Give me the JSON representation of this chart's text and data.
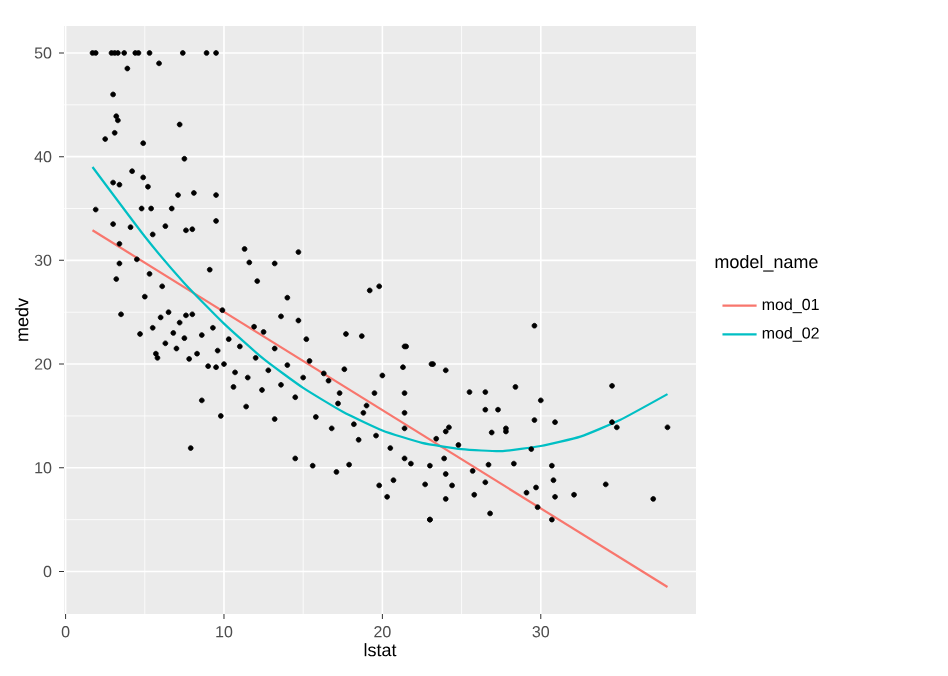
{
  "chart_data": {
    "type": "scatter",
    "xlabel": "lstat",
    "ylabel": "medv",
    "legend_title": "model_name",
    "xlim": [
      -0.1,
      39.8
    ],
    "ylim": [
      -4.1,
      52.6
    ],
    "xticks": [
      0,
      10,
      20,
      30
    ],
    "yticks": [
      0,
      10,
      20,
      30,
      40,
      50
    ],
    "grid": true,
    "legend": "right",
    "series": [
      {
        "marker": "circle",
        "color": "#000000",
        "x": [
          1.7,
          1.9,
          2.9,
          3.1,
          3.3,
          3.7,
          4.4,
          4.6,
          5.3,
          7.4,
          8.9,
          9.5,
          5.9,
          3.9,
          3.0,
          3.2,
          3.3,
          3.1,
          2.5,
          4.9,
          7.2,
          7.5,
          4.2,
          3.0,
          3.4,
          4.9,
          5.2,
          1.9,
          4.8,
          5.4,
          6.7,
          7.1,
          8.1,
          9.5,
          9.5,
          3.0,
          4.1,
          6.3,
          8.0,
          3.4,
          5.5,
          11.3,
          14.7,
          11.6,
          13.2,
          3.4,
          12.1,
          3.2,
          14.0,
          3.5,
          9.1,
          7.6,
          19.2,
          19.8,
          7.6,
          7.9,
          8.6,
          9.8,
          14.5,
          15.6,
          17.1,
          17.9,
          19.8,
          20.3,
          20.7,
          21.4,
          21.5,
          23.0,
          23.0,
          23.2,
          14.7,
          13.6,
          12.5,
          18.7,
          17.7,
          16.6,
          17.3,
          18.8,
          19.5,
          13.2,
          11.4,
          9.5,
          10.6,
          5.7,
          29.6,
          34.5,
          38.0,
          37.1,
          34.1,
          34.5,
          34.8,
          32.1,
          30.9,
          30.7,
          30.8,
          30.7,
          30.9,
          30.0,
          29.6,
          29.8,
          29.7,
          29.4,
          29.1,
          28.3,
          28.4,
          27.8,
          27.8,
          27.3,
          26.5,
          26.5,
          26.7,
          26.8,
          26.9,
          26.5,
          25.8,
          25.5,
          25.7,
          24.4,
          24.0,
          24.0,
          24.0,
          23.1,
          23.0,
          24.2,
          24.0,
          23.9,
          23.4,
          24.8,
          22.7,
          21.8,
          21.4,
          21.3,
          21.4,
          21.4,
          21.4,
          5.5,
          6.0,
          6.3,
          6.5,
          6.8,
          7.0,
          7.2,
          7.5,
          7.8,
          8.0,
          8.3,
          8.6,
          9.0,
          9.3,
          9.6,
          10.0,
          10.3,
          10.7,
          11.0,
          11.5,
          12.0,
          12.4,
          12.8,
          13.2,
          13.6,
          14.0,
          14.5,
          15.0,
          15.4,
          15.8,
          16.3,
          16.8,
          17.2,
          17.6,
          18.2,
          18.5,
          19.0,
          19.6,
          20.0,
          20.5,
          4.7,
          5.0,
          5.8,
          6.1,
          4.5,
          9.9,
          11.9,
          15.2,
          5.3
        ],
        "values": [
          50,
          50,
          50,
          50,
          50,
          50,
          50,
          50,
          50,
          50,
          50,
          50,
          49.0,
          48.5,
          46.0,
          43.9,
          43.5,
          42.3,
          41.7,
          41.3,
          43.1,
          39.8,
          38.6,
          37.5,
          37.3,
          38.0,
          37.1,
          34.9,
          35.0,
          35.0,
          35.0,
          36.3,
          36.5,
          36.3,
          33.8,
          33.5,
          33.2,
          33.3,
          33.0,
          31.6,
          32.5,
          31.1,
          30.8,
          29.8,
          29.7,
          29.7,
          28.0,
          28.2,
          26.4,
          24.8,
          29.1,
          32.9,
          27.1,
          27.5,
          24.7,
          11.9,
          16.5,
          15.0,
          10.9,
          10.2,
          9.6,
          10.3,
          8.3,
          7.2,
          8.8,
          13.8,
          21.7,
          10.2,
          5.0,
          20.0,
          24.2,
          24.6,
          23.1,
          22.7,
          22.9,
          18.4,
          17.2,
          15.3,
          17.2,
          14.7,
          15.9,
          19.7,
          17.8,
          21.0,
          23.7,
          17.9,
          13.9,
          7.0,
          8.4,
          14.4,
          13.9,
          7.4,
          7.2,
          5.0,
          8.8,
          10.2,
          14.4,
          16.5,
          14.6,
          6.2,
          8.1,
          11.8,
          7.6,
          10.4,
          17.8,
          13.8,
          13.5,
          15.6,
          17.3,
          15.6,
          10.3,
          5.6,
          13.4,
          8.6,
          7.4,
          17.3,
          9.7,
          8.3,
          7.0,
          9.4,
          19.4,
          20.0,
          5.0,
          13.9,
          13.5,
          10.9,
          12.8,
          12.2,
          8.4,
          10.4,
          21.7,
          19.7,
          17.2,
          15.3,
          10.9,
          23.5,
          24.5,
          22.0,
          25.0,
          23.0,
          21.5,
          24.0,
          22.5,
          20.5,
          24.8,
          21.0,
          22.8,
          19.8,
          23.5,
          21.3,
          20.0,
          22.4,
          19.2,
          21.7,
          18.7,
          20.6,
          17.5,
          19.4,
          21.5,
          18.0,
          19.9,
          16.8,
          18.7,
          20.3,
          14.9,
          19.1,
          13.8,
          16.2,
          19.5,
          14.2,
          12.7,
          16.0,
          13.1,
          18.9,
          11.9,
          22.9,
          26.5,
          20.6,
          27.5,
          30.1,
          25.2,
          23.6,
          22.4,
          28.7
        ]
      },
      {
        "type": "line",
        "marker": "none",
        "name": "mod_01",
        "color": "#f8766d",
        "x": [
          1.7,
          38.0
        ],
        "values": [
          32.9,
          -1.5
        ]
      },
      {
        "type": "line",
        "marker": "none",
        "name": "mod_02",
        "color": "#00bfc4",
        "x": [
          1.7,
          5,
          7.5,
          10,
          12.5,
          15,
          17.5,
          20,
          22.5,
          25,
          27.5,
          30,
          32.5,
          35,
          38.0
        ],
        "values": [
          39.0,
          32.3,
          27.8,
          23.9,
          20.5,
          17.7,
          15.4,
          13.6,
          12.4,
          11.8,
          11.6,
          12.1,
          13.0,
          14.6,
          17.1
        ]
      }
    ]
  }
}
